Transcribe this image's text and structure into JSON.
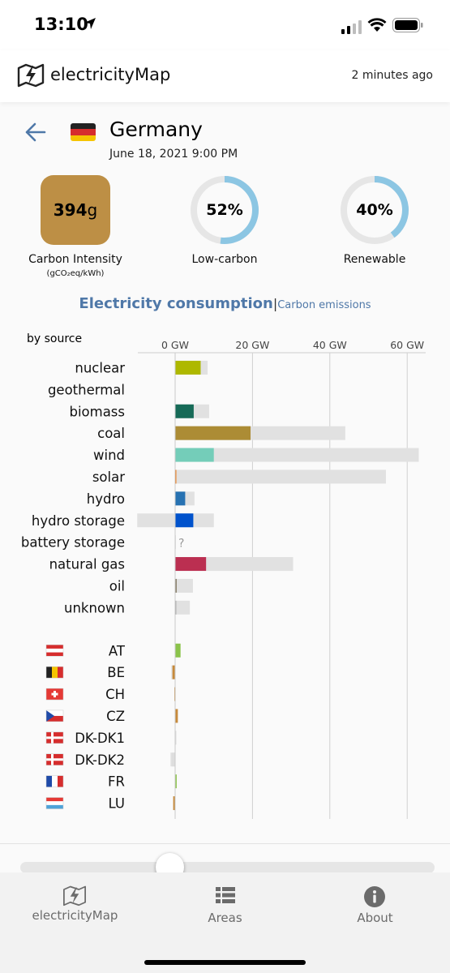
{
  "status_bar": {
    "time": "13:10"
  },
  "header": {
    "app_name": "electricityMap",
    "updated": "2 minutes ago"
  },
  "zone": {
    "name": "Germany",
    "datetime": "June 18, 2021 9:00 PM"
  },
  "metrics": {
    "carbon_intensity": {
      "value": "394",
      "unit": "g",
      "label": "Carbon Intensity",
      "unit_label": "(gCO₂eq/kWh)",
      "color": "#bd8f45"
    },
    "low_carbon": {
      "value": "52%",
      "label": "Low-carbon",
      "fraction": 0.52
    },
    "renewable": {
      "value": "40%",
      "label": "Renewable",
      "fraction": 0.4
    }
  },
  "tabs": {
    "active": "Electricity consumption",
    "separator": "|",
    "other": "Carbon emissions"
  },
  "chart_data": {
    "type": "bar",
    "title": "by source",
    "axis_ticks": [
      "0 GW",
      "20 GW",
      "40 GW",
      "60 GW"
    ],
    "xlim": [
      -10,
      64
    ],
    "sources": [
      {
        "name": "nuclear",
        "value": 6.6,
        "capacity": 8.4,
        "color": "#aeb800"
      },
      {
        "name": "geothermal",
        "value": 0,
        "capacity": 0,
        "color": "#f5b300"
      },
      {
        "name": "biomass",
        "value": 4.8,
        "capacity": 8.8,
        "color": "#166a57"
      },
      {
        "name": "coal",
        "value": 19.5,
        "capacity": 44.0,
        "color": "#ac8c35"
      },
      {
        "name": "wind",
        "value": 10.0,
        "capacity": 63.0,
        "color": "#74cdb9"
      },
      {
        "name": "solar",
        "value": 0.3,
        "capacity": 54.5,
        "color": "#f27406"
      },
      {
        "name": "hydro",
        "value": 2.6,
        "capacity": 5.0,
        "color": "#2772b2"
      },
      {
        "name": "hydro storage",
        "value": 4.7,
        "capacity": 10.0,
        "negative_capacity": -9.8,
        "color": "#0052cc"
      },
      {
        "name": "battery storage",
        "value": 0,
        "capacity": 0.2,
        "unknown": "?",
        "color": "#b76fd4"
      },
      {
        "name": "natural gas",
        "value": 8.0,
        "capacity": 30.5,
        "color": "#bb2f51"
      },
      {
        "name": "oil",
        "value": 0.4,
        "capacity": 4.6,
        "color": "#867d66"
      },
      {
        "name": "unknown",
        "value": 0.3,
        "capacity": 3.8,
        "color": "#acacac"
      }
    ],
    "exchanges": [
      {
        "name": "AT",
        "value": 1.4,
        "color": "#8bc34a",
        "flag": "at"
      },
      {
        "name": "BE",
        "value": -0.7,
        "capacity": 1.0,
        "color": "#c78a3b",
        "flag": "be"
      },
      {
        "name": "CH",
        "value": -0.2,
        "color": "#c78a3b",
        "flag": "ch"
      },
      {
        "name": "CZ",
        "value": 0.7,
        "color": "#c78a3b",
        "flag": "cz"
      },
      {
        "name": "DK-DK1",
        "value": 0.2,
        "color": "#dddddd",
        "flag": "dk"
      },
      {
        "name": "DK-DK2",
        "value": -0.9,
        "capacity": 1.2,
        "color": "#dddddd",
        "flag": "dk"
      },
      {
        "name": "FR",
        "value": 0.4,
        "color": "#8bc34a",
        "flag": "fr"
      },
      {
        "name": "LU",
        "value": -0.5,
        "color": "#c78a3b",
        "flag": "lu"
      }
    ]
  },
  "tabbar": {
    "items": [
      "electricityMap",
      "Areas",
      "About"
    ]
  }
}
